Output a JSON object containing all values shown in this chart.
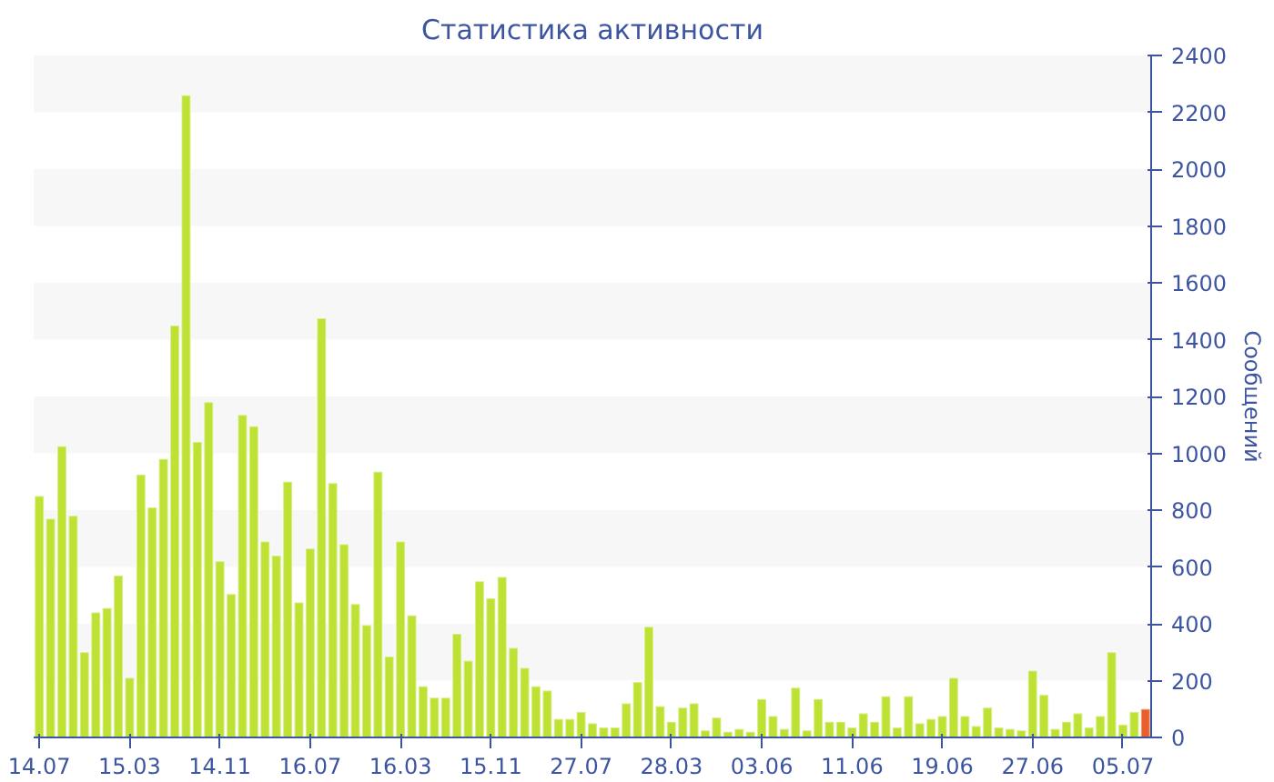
{
  "chart_data": {
    "type": "bar",
    "title": "Статистика активности",
    "ylabel": "Сообщений",
    "categories": [
      "14.07",
      null,
      null,
      null,
      null,
      null,
      null,
      null,
      "15.03",
      null,
      null,
      null,
      null,
      null,
      null,
      null,
      "14.11",
      null,
      null,
      null,
      null,
      null,
      null,
      null,
      "16.07",
      null,
      null,
      null,
      null,
      null,
      null,
      null,
      "16.03",
      null,
      null,
      null,
      null,
      null,
      null,
      null,
      "15.11",
      null,
      null,
      null,
      null,
      null,
      null,
      null,
      "27.07",
      null,
      null,
      null,
      null,
      null,
      null,
      null,
      "28.03",
      null,
      null,
      null,
      null,
      null,
      null,
      null,
      "03.06",
      null,
      null,
      null,
      null,
      null,
      null,
      null,
      "11.06",
      null,
      null,
      null,
      null,
      null,
      null,
      null,
      "19.06",
      null,
      null,
      null,
      null,
      null,
      null,
      null,
      "27.06",
      null,
      null,
      null,
      null,
      null,
      null,
      null,
      "05.07",
      null,
      null
    ],
    "values": [
      850,
      770,
      1025,
      780,
      300,
      440,
      455,
      570,
      210,
      925,
      810,
      980,
      1450,
      2260,
      1040,
      1180,
      620,
      505,
      1135,
      1095,
      690,
      640,
      900,
      475,
      665,
      1475,
      895,
      680,
      470,
      395,
      935,
      285,
      690,
      430,
      180,
      140,
      140,
      365,
      270,
      550,
      490,
      565,
      315,
      245,
      180,
      165,
      65,
      65,
      90,
      50,
      35,
      35,
      120,
      195,
      390,
      110,
      55,
      105,
      120,
      25,
      70,
      20,
      30,
      20,
      135,
      75,
      30,
      175,
      25,
      135,
      55,
      55,
      35,
      85,
      55,
      145,
      35,
      145,
      50,
      65,
      75,
      210,
      75,
      40,
      105,
      35,
      30,
      25,
      235,
      150,
      30,
      55,
      85,
      35,
      75,
      300,
      45,
      90,
      100
    ],
    "colors": [
      "#bde234",
      "#bde234",
      "#bde234",
      "#bde234",
      "#bde234",
      "#bde234",
      "#bde234",
      "#bde234",
      "#bde234",
      "#bde234",
      "#bde234",
      "#bde234",
      "#bde234",
      "#bde234",
      "#bde234",
      "#bde234",
      "#bde234",
      "#bde234",
      "#bde234",
      "#bde234",
      "#bde234",
      "#bde234",
      "#bde234",
      "#bde234",
      "#bde234",
      "#bde234",
      "#bde234",
      "#bde234",
      "#bde234",
      "#bde234",
      "#bde234",
      "#bde234",
      "#bde234",
      "#bde234",
      "#bde234",
      "#bde234",
      "#bde234",
      "#bde234",
      "#bde234",
      "#bde234",
      "#bde234",
      "#bde234",
      "#bde234",
      "#bde234",
      "#bde234",
      "#bde234",
      "#bde234",
      "#bde234",
      "#bde234",
      "#bde234",
      "#bde234",
      "#bde234",
      "#bde234",
      "#bde234",
      "#bde234",
      "#bde234",
      "#bde234",
      "#bde234",
      "#bde234",
      "#bde234",
      "#bde234",
      "#bde234",
      "#bde234",
      "#bde234",
      "#bde234",
      "#bde234",
      "#bde234",
      "#bde234",
      "#bde234",
      "#bde234",
      "#bde234",
      "#bde234",
      "#bde234",
      "#bde234",
      "#bde234",
      "#bde234",
      "#bde234",
      "#bde234",
      "#bde234",
      "#bde234",
      "#bde234",
      "#bde234",
      "#bde234",
      "#bde234",
      "#bde234",
      "#bde234",
      "#bde234",
      "#bde234",
      "#bde234",
      "#bde234",
      "#bde234",
      "#bde234",
      "#bde234",
      "#bde234",
      "#bde234",
      "#bde234",
      "#bde234",
      "#bde234",
      "#e8602c"
    ],
    "ylim": [
      0,
      2400
    ],
    "yticks": [
      0,
      200,
      400,
      600,
      800,
      1000,
      1200,
      1400,
      1600,
      1800,
      2000,
      2200,
      2400
    ]
  }
}
